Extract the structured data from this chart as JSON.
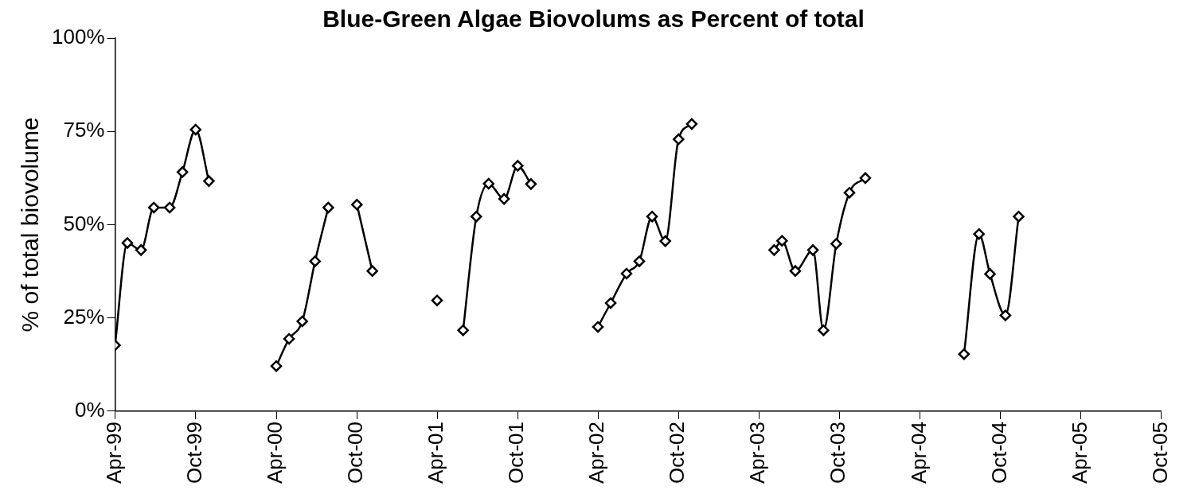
{
  "chart_data": {
    "type": "line",
    "title": "Blue-Green Algae Biovolums as Percent of total",
    "ylabel": "% of total biovolume",
    "x": [
      "1999-04-01",
      "1999-04-29",
      "1999-05-30",
      "1999-06-28",
      "1999-08-03",
      "1999-09-01",
      "1999-10-01",
      "1999-10-31",
      "2000-01-15",
      "2000-04-01",
      "2000-04-30",
      "2000-05-30",
      "2000-06-28",
      "2000-07-28",
      "2000-09-01",
      "2000-10-01",
      "2000-11-05",
      "2001-01-15",
      "2001-04-01",
      "2001-05-01",
      "2001-05-30",
      "2001-06-29",
      "2001-07-27",
      "2001-08-31",
      "2001-10-01",
      "2001-10-31",
      "2002-01-15",
      "2002-04-01",
      "2002-04-30",
      "2002-06-05",
      "2002-07-04",
      "2002-08-02",
      "2002-09-01",
      "2002-10-01",
      "2002-10-31",
      "2003-01-15",
      "2003-05-06",
      "2003-05-24",
      "2003-06-23",
      "2003-08-02",
      "2003-08-26",
      "2003-09-24",
      "2003-10-24",
      "2003-11-29",
      "2004-03-15",
      "2004-07-10",
      "2004-08-13",
      "2004-09-07",
      "2004-10-12",
      "2004-11-11"
    ],
    "series": [
      {
        "color": "#000000",
        "values": [
          17.7,
          45.1,
          43.2,
          54.6,
          54.6,
          64.1,
          75.5,
          61.7,
          null,
          12.1,
          19.4,
          24.1,
          40.2,
          54.6,
          null,
          55.4,
          37.6,
          null,
          29.7,
          null,
          21.7,
          52.2,
          61.0,
          56.9,
          65.8,
          60.9,
          null,
          22.6,
          29.0,
          36.9,
          40.2,
          52.2,
          45.6,
          72.9,
          77.0,
          null,
          43.2,
          45.7,
          37.6,
          43.2,
          21.7,
          44.9,
          58.6,
          62.5,
          null,
          15.3,
          47.5,
          36.8,
          25.7,
          52.2
        ]
      }
    ],
    "xlim": [
      "1999-04-01",
      "2005-10-01"
    ],
    "xticks": [
      {
        "value": "1999-04-01",
        "label": "Apr-99"
      },
      {
        "value": "1999-10-01",
        "label": "Oct-99"
      },
      {
        "value": "2000-04-01",
        "label": "Apr-00"
      },
      {
        "value": "2000-10-01",
        "label": "Oct-00"
      },
      {
        "value": "2001-04-01",
        "label": "Apr-01"
      },
      {
        "value": "2001-10-01",
        "label": "Oct-01"
      },
      {
        "value": "2002-04-01",
        "label": "Apr-02"
      },
      {
        "value": "2002-10-01",
        "label": "Oct-02"
      },
      {
        "value": "2003-04-01",
        "label": "Apr-03"
      },
      {
        "value": "2003-10-01",
        "label": "Oct-03"
      },
      {
        "value": "2004-04-01",
        "label": "Apr-04"
      },
      {
        "value": "2004-10-01",
        "label": "Oct-04"
      },
      {
        "value": "2005-04-01",
        "label": "Apr-05"
      },
      {
        "value": "2005-10-01",
        "label": "Oct-05"
      }
    ],
    "ylim": [
      0,
      100
    ],
    "yticks": [
      {
        "value": 0,
        "label": "0%"
      },
      {
        "value": 25,
        "label": "25%"
      },
      {
        "value": 50,
        "label": "50%"
      },
      {
        "value": 75,
        "label": "75%"
      },
      {
        "value": 100,
        "label": "100%"
      }
    ],
    "grid": false,
    "legend": false,
    "marker": "diamond",
    "line_style": "solid"
  }
}
